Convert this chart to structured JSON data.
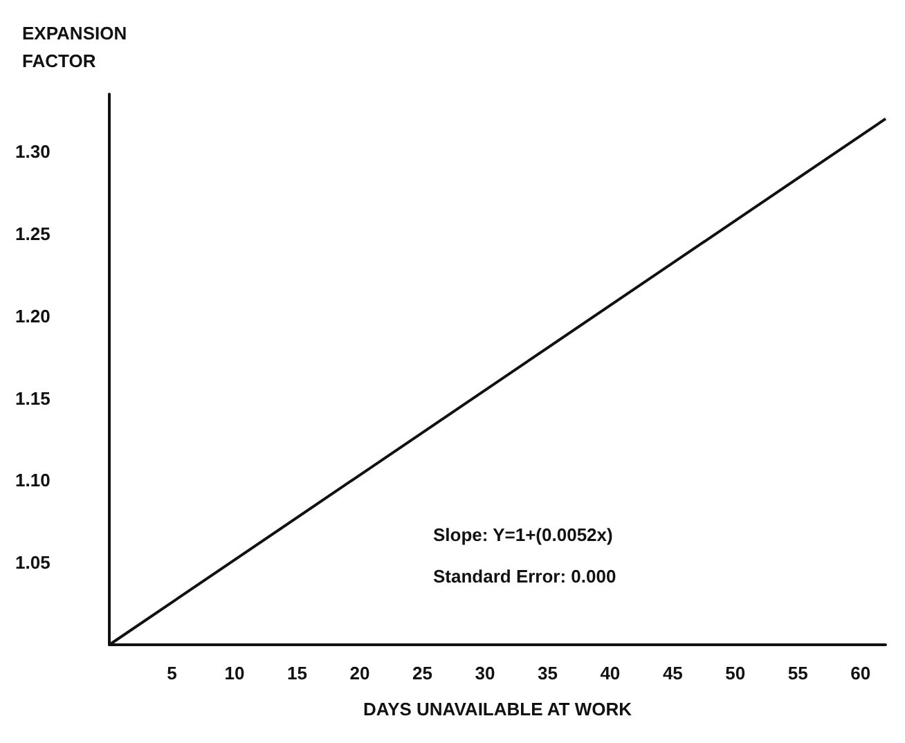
{
  "chart_data": {
    "type": "line",
    "xlabel": "DAYS UNAVAILABLE AT WORK",
    "ylabel": "EXPANSION\nFACTOR",
    "x": [
      0,
      62
    ],
    "series": [
      {
        "color": "#111111",
        "values": [
          1.0,
          1.32
        ]
      }
    ],
    "xlim": [
      0,
      62
    ],
    "xticks": [
      5,
      10,
      15,
      20,
      25,
      30,
      35,
      40,
      45,
      50,
      55,
      60
    ],
    "ylim": [
      1.0,
      1.335
    ],
    "yticks": [
      {
        "value": 1.05,
        "label": "1.05"
      },
      {
        "value": 1.1,
        "label": "1.10"
      },
      {
        "value": 1.15,
        "label": "1.15"
      },
      {
        "value": 1.2,
        "label": "1.20"
      },
      {
        "value": 1.25,
        "label": "1.25"
      },
      {
        "value": 1.3,
        "label": "1.30"
      }
    ],
    "annotations": [
      "Slope: Y=1+(0.0052x)",
      "Standard Error: 0.000"
    ],
    "grid": false,
    "marker": "none",
    "line_style": "solid"
  }
}
